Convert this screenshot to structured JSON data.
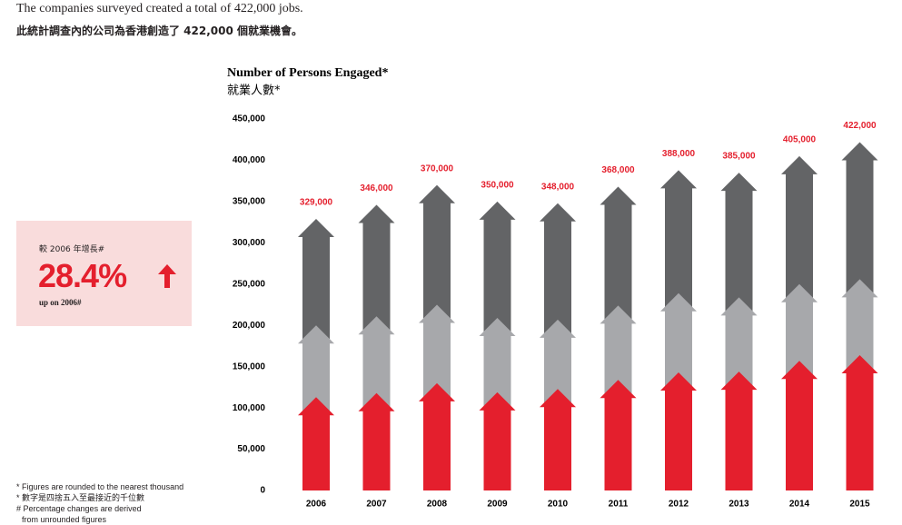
{
  "intro": {
    "en": "The companies surveyed created a total of 422,000 jobs.",
    "zh": "此統計調查內的公司為香港創造了 422,000 個就業機會。"
  },
  "callout": {
    "zh": "較 2006 年增長#",
    "value": "28.4%",
    "en": "up on 2006#"
  },
  "notes": [
    "* Figures are rounded to the nearest thousand",
    "* 數字是四捨五入至最接近的千位數",
    "# Percentage changes are derived",
    "from unrounded figures"
  ],
  "chart_data": {
    "type": "stacked_arrow",
    "title": "Number of Persons Engaged*",
    "subtitle": "就業人數*",
    "categories": [
      "2006",
      "2007",
      "2008",
      "2009",
      "2010",
      "2011",
      "2012",
      "2013",
      "2014",
      "2015"
    ],
    "series": [
      {
        "color": "#e41f2d",
        "values": [
          113000,
          118000,
          130000,
          119000,
          123000,
          134000,
          143000,
          144000,
          157000,
          164000
        ]
      },
      {
        "color": "#a7a8ab",
        "values": [
          87000,
          93000,
          95000,
          90000,
          84000,
          90000,
          96000,
          90000,
          93000,
          92000
        ]
      },
      {
        "color": "#636466",
        "values": [
          129000,
          135000,
          145000,
          141000,
          141000,
          144000,
          149000,
          151000,
          155000,
          166000
        ]
      }
    ],
    "totals": [
      329000,
      346000,
      370000,
      350000,
      348000,
      368000,
      388000,
      385000,
      405000,
      422000
    ],
    "total_labels": [
      "329,000",
      "346,000",
      "370,000",
      "350,000",
      "348,000",
      "368,000",
      "388,000",
      "385,000",
      "405,000",
      "422,000"
    ],
    "label_color": "#e41f2d",
    "ylim": [
      0,
      450000
    ],
    "yticks": [
      0,
      {
        "value": 50000,
        "label": "50,000"
      },
      {
        "value": 100000,
        "label": "100,000"
      },
      {
        "value": 150000,
        "label": "150,000"
      },
      {
        "value": 200000,
        "label": "200,000"
      },
      {
        "value": 250000,
        "label": "250,000"
      },
      {
        "value": 300000,
        "label": "300,000"
      },
      {
        "value": 350000,
        "label": "350,000"
      },
      {
        "value": 400000,
        "label": "400,000"
      },
      {
        "value": 450000,
        "label": "450,000"
      }
    ],
    "grid": false
  }
}
